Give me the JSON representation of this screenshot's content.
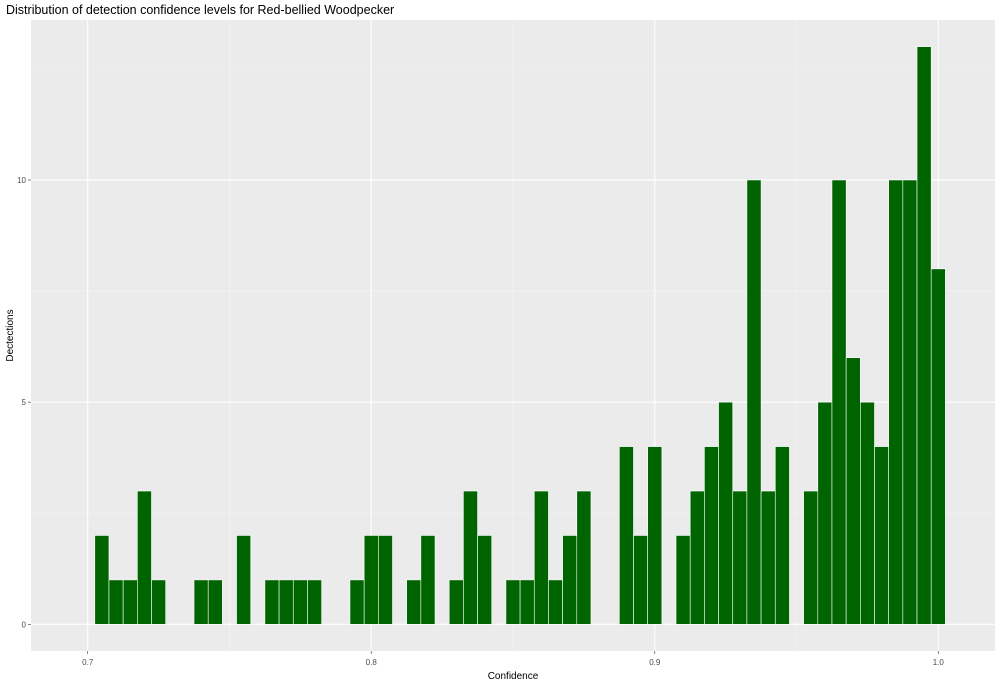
{
  "chart_data": {
    "type": "bar",
    "title": "Distribution of detection confidence levels for Red-bellied Woodpecker",
    "xlabel": "Confidence",
    "ylabel": "Dectections",
    "xlim": [
      0.68,
      1.02
    ],
    "ylim": [
      -0.6,
      13.6
    ],
    "x_ticks": [
      0.7,
      0.8,
      0.9,
      1.0
    ],
    "x_tick_labels": [
      "0.7",
      "0.8",
      "0.9",
      "1.0"
    ],
    "y_ticks": [
      0,
      5,
      10
    ],
    "y_tick_labels": [
      "0",
      "5",
      "10"
    ],
    "bin_width": 0.005,
    "grid": true,
    "bar_color": "#006400",
    "panel_background": "#ebebeb",
    "bins": [
      {
        "x": 0.705,
        "count": 2
      },
      {
        "x": 0.71,
        "count": 1
      },
      {
        "x": 0.715,
        "count": 1
      },
      {
        "x": 0.72,
        "count": 3
      },
      {
        "x": 0.725,
        "count": 1
      },
      {
        "x": 0.74,
        "count": 1
      },
      {
        "x": 0.745,
        "count": 1
      },
      {
        "x": 0.755,
        "count": 2
      },
      {
        "x": 0.765,
        "count": 1
      },
      {
        "x": 0.77,
        "count": 1
      },
      {
        "x": 0.775,
        "count": 1
      },
      {
        "x": 0.78,
        "count": 1
      },
      {
        "x": 0.795,
        "count": 1
      },
      {
        "x": 0.8,
        "count": 2
      },
      {
        "x": 0.805,
        "count": 2
      },
      {
        "x": 0.815,
        "count": 1
      },
      {
        "x": 0.82,
        "count": 2
      },
      {
        "x": 0.83,
        "count": 1
      },
      {
        "x": 0.835,
        "count": 3
      },
      {
        "x": 0.84,
        "count": 2
      },
      {
        "x": 0.85,
        "count": 1
      },
      {
        "x": 0.855,
        "count": 1
      },
      {
        "x": 0.86,
        "count": 3
      },
      {
        "x": 0.865,
        "count": 1
      },
      {
        "x": 0.87,
        "count": 2
      },
      {
        "x": 0.875,
        "count": 3
      },
      {
        "x": 0.89,
        "count": 4
      },
      {
        "x": 0.895,
        "count": 2
      },
      {
        "x": 0.9,
        "count": 4
      },
      {
        "x": 0.91,
        "count": 2
      },
      {
        "x": 0.915,
        "count": 3
      },
      {
        "x": 0.92,
        "count": 4
      },
      {
        "x": 0.925,
        "count": 5
      },
      {
        "x": 0.93,
        "count": 3
      },
      {
        "x": 0.935,
        "count": 10
      },
      {
        "x": 0.94,
        "count": 3
      },
      {
        "x": 0.945,
        "count": 4
      },
      {
        "x": 0.955,
        "count": 3
      },
      {
        "x": 0.96,
        "count": 5
      },
      {
        "x": 0.965,
        "count": 10
      },
      {
        "x": 0.97,
        "count": 6
      },
      {
        "x": 0.975,
        "count": 5
      },
      {
        "x": 0.98,
        "count": 4
      },
      {
        "x": 0.985,
        "count": 10
      },
      {
        "x": 0.99,
        "count": 10
      },
      {
        "x": 0.995,
        "count": 13
      },
      {
        "x": 1.0,
        "count": 8
      }
    ]
  }
}
